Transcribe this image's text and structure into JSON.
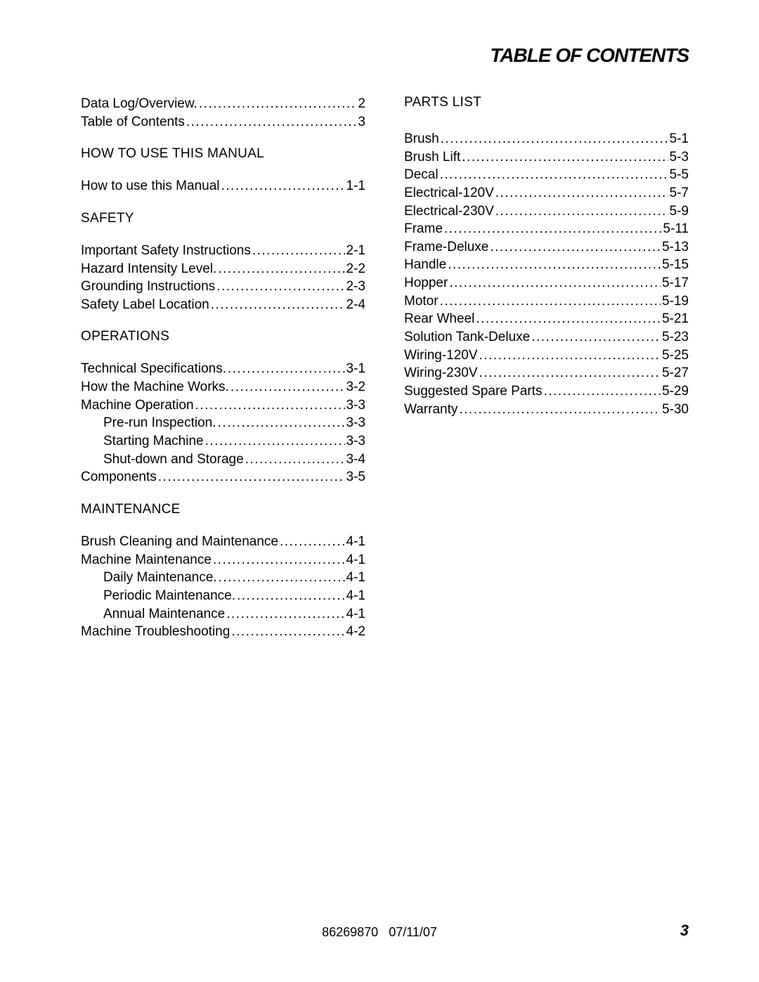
{
  "header": {
    "title": "TABLE OF CONTENTS"
  },
  "footer": {
    "docnum": "86269870",
    "date": "07/11/07",
    "pagenum": "3"
  },
  "left": {
    "pre": [
      {
        "label": "Data Log/Overview.",
        "page": "2",
        "indent": false
      },
      {
        "label": "Table of Contents",
        "page": "3",
        "indent": false
      }
    ],
    "sections": [
      {
        "title": "HOW TO USE THIS MANUAL",
        "items": [
          {
            "label": "How to use this Manual",
            "page": "1-1",
            "indent": false
          }
        ]
      },
      {
        "title": "SAFETY",
        "items": [
          {
            "label": "Important Safety Instructions",
            "page": "2-1",
            "indent": false
          },
          {
            "label": "Hazard Intensity Level.",
            "page": "2-2",
            "indent": false
          },
          {
            "label": "Grounding Instructions",
            "page": "2-3",
            "indent": false
          },
          {
            "label": "Safety Label Location",
            "page": "2-4",
            "indent": false
          }
        ]
      },
      {
        "title": "OPERATIONS",
        "items": [
          {
            "label": "Technical Specifications.",
            "page": "3-1",
            "indent": false
          },
          {
            "label": "How the Machine Works.",
            "page": "3-2",
            "indent": false
          },
          {
            "label": "Machine Operation",
            "page": "3-3",
            "indent": false
          },
          {
            "label": "Pre-run Inspection.",
            "page": "3-3",
            "indent": true
          },
          {
            "label": "Starting Machine",
            "page": "3-3",
            "indent": true
          },
          {
            "label": "Shut-down and Storage",
            "page": "3-4",
            "indent": true
          },
          {
            "label": "Components",
            "page": "3-5",
            "indent": false
          }
        ]
      },
      {
        "title": "MAINTENANCE",
        "items": [
          {
            "label": "Brush Cleaning and Maintenance",
            "page": "4-1",
            "indent": false
          },
          {
            "label": "Machine Maintenance",
            "page": "4-1",
            "indent": false
          },
          {
            "label": "Daily Maintenance.",
            "page": "4-1",
            "indent": true
          },
          {
            "label": "Periodic Maintenance.",
            "page": "4-1",
            "indent": true
          },
          {
            "label": "Annual Maintenance",
            "page": "4-1",
            "indent": true
          },
          {
            "label": "Machine Troubleshooting",
            "page": "4-2",
            "indent": false
          }
        ]
      }
    ]
  },
  "right": {
    "sections": [
      {
        "title": "PARTS LIST",
        "items": [
          {
            "label": "Brush",
            "page": "5-1",
            "indent": false
          },
          {
            "label": "Brush Lift",
            "page": "5-3",
            "indent": false
          },
          {
            "label": "Decal",
            "page": "5-5",
            "indent": false
          },
          {
            "label": "Electrical-120V",
            "page": "5-7",
            "indent": false
          },
          {
            "label": "Electrical-230V",
            "page": "5-9",
            "indent": false
          },
          {
            "label": "Frame",
            "page": "5-11",
            "indent": false
          },
          {
            "label": "Frame-Deluxe",
            "page": "5-13",
            "indent": false
          },
          {
            "label": "Handle",
            "page": "5-15",
            "indent": false
          },
          {
            "label": "Hopper",
            "page": "5-17",
            "indent": false
          },
          {
            "label": "Motor",
            "page": "5-19",
            "indent": false
          },
          {
            "label": "Rear Wheel",
            "page": "5-21",
            "indent": false
          },
          {
            "label": "Solution Tank-Deluxe",
            "page": "5-23",
            "indent": false
          },
          {
            "label": "Wiring-120V",
            "page": "5-25",
            "indent": false
          },
          {
            "label": "Wiring-230V",
            "page": "5-27",
            "indent": false
          },
          {
            "label": "Suggested Spare Parts",
            "page": "5-29",
            "indent": false
          },
          {
            "label": "Warranty",
            "page": "5-30",
            "indent": false
          }
        ]
      }
    ]
  }
}
